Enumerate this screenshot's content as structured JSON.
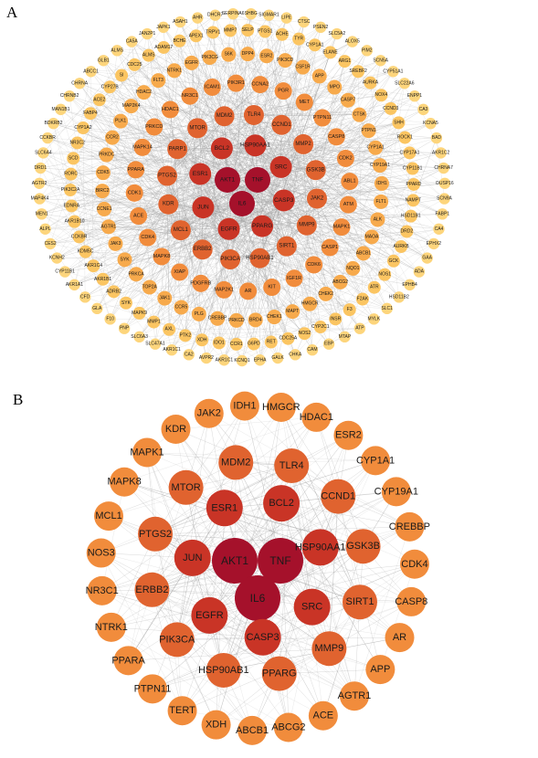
{
  "panels": {
    "a": {
      "letter": "A",
      "center": [
        "AKT1",
        "TNF",
        "IL6"
      ],
      "ring1": [
        "BCL2",
        "HSP90AA1",
        "SRC",
        "CASP3",
        "PPARG",
        "EGFR",
        "JUN",
        "ESR1"
      ],
      "ring2": [
        "MTOR",
        "MDM2",
        "TLR4",
        "CCND1",
        "MMP2",
        "GSK3B",
        "JAK2",
        "MMP9",
        "SIRT1",
        "HSP90AB1",
        "PIK3CA",
        "ERBB2",
        "MCL1",
        "KDR",
        "PTGS2",
        "PARP1"
      ],
      "ring3": [
        "HDAC1",
        "NR3C1",
        "ICAM1",
        "PIK3R1",
        "CCNA2",
        "PGR",
        "MET",
        "PTPN11",
        "CASP8",
        "CDK2",
        "ABL1",
        "ATM",
        "MAPK1",
        "CASP1",
        "CDK6",
        "IGF1R",
        "KIT",
        "AR",
        "MAP2K1",
        "PDGFRB",
        "XIAP",
        "MAPK8",
        "CDK4",
        "ACE",
        "CDK1",
        "PPARA",
        "MAPK14",
        "PRKCD"
      ],
      "ring4": [
        "HDAC2",
        "FLT3",
        "NTRK1",
        "EGFR",
        "PIK3CG",
        "S6K",
        "DPP4",
        "ESR2",
        "PIK3CD",
        "CSF1R",
        "APP",
        "MPO",
        "CASP7",
        "CTSK",
        "PTPN1",
        "CYP1A1",
        "CYP19A1",
        "IDH1",
        "FLT1",
        "ALK",
        "MAOA",
        "ABCB1",
        "NQO1",
        "ABCG2",
        "CHEK2",
        "HMGCR",
        "MAPT",
        "CHEK1",
        "BRD4",
        "PRKCD",
        "CREBBP",
        "PLG",
        "CCR5",
        "JAK1",
        "TOP2A",
        "PRKCA",
        "SYK",
        "JAK3",
        "AGTR1",
        "CCNE1",
        "BIRC2",
        "CDK5",
        "PRKDC",
        "CCR2",
        "PLK1",
        "MAP2K4"
      ],
      "ring5": [
        "CYP27B",
        "SI",
        "CDC25",
        "ALMS",
        "ADAM17",
        "BCHE",
        "APEX1",
        "TRPV1",
        "MMP7",
        "SELP",
        "PTGS1",
        "ACHE",
        "TYR",
        "CYP1A1",
        "ELANE",
        "ARG1",
        "SREBF2",
        "AURKA",
        "NOX4",
        "CCND3",
        "SHH",
        "ROCK1",
        "CYP17A1",
        "CYP11B1",
        "PPARD",
        "NAMPT",
        "HSD11B1",
        "DRD2",
        "AURKB",
        "GCK",
        "NOS1",
        "ATR",
        "F2AK",
        "F3",
        "INSR",
        "CYP2C1",
        "NOS2",
        "CDC25A",
        "RET",
        "G6PD",
        "CCR1",
        "IDO1",
        "XDH",
        "PTK2",
        "AXL",
        "MMP1",
        "MAPK9",
        "SYK",
        "ADRB2",
        "AKR1B1",
        "AKR1C4",
        "KDM5C",
        "CCKBR",
        "AKR1B10",
        "EDNRA",
        "PIK3C2A",
        "RORC",
        "SCD",
        "NR3C2",
        "CYP1A2",
        "FABP4",
        "ACE2"
      ],
      "ring6": [
        "CHRNA",
        "ABCC1",
        "GLB1",
        "ALMS",
        "CA5A",
        "JAN2P1",
        "JAPK1",
        "ASAH1",
        "AHR",
        "DHCR7",
        "SERPINA6",
        "SHBG",
        "SIGMAR1",
        "LIPE",
        "CTSC",
        "PSEN2",
        "SLC5A2",
        "ALOX5",
        "PIM2",
        "SCN5A",
        "CYP51A1",
        "SLC22A6",
        "ENPP1",
        "CA3",
        "KCNA5",
        "BAD",
        "AKR1C2",
        "CHRNA7",
        "DUSP16",
        "SCN9A",
        "FABP1",
        "CA4",
        "EPHX2",
        "GAA",
        "ADA",
        "EPHB4",
        "HSD11B2",
        "SLC1",
        "MYLK",
        "ATP",
        "MTAP",
        "EBP",
        "CAM",
        "CHKA",
        "GALK",
        "EPHA",
        "KCNQ1",
        "AKR1C1",
        "AVPR2",
        "CA2",
        "AKR1C1",
        "SLC47A1",
        "SLC6A3",
        "PNP",
        "F10",
        "GLA",
        "CFD",
        "AKR1A1",
        "CYP11B1",
        "KCNH2",
        "CES2",
        "ALPL",
        "MEN1",
        "MAP4K4",
        "AGTR2",
        "DRD1",
        "SLC6A4",
        "CCKBR",
        "BDKRB2",
        "MAN1B1",
        "CHRNB2"
      ]
    },
    "b": {
      "letter": "B",
      "center": [
        "AKT1",
        "TNF",
        "IL6"
      ],
      "ring1": [
        "BCL2",
        "HSP90AA1",
        "SRC",
        "CASP3",
        "EGFR",
        "JUN",
        "ESR1"
      ],
      "ring2": [
        "TLR4",
        "CCND1",
        "GSK3B",
        "SIRT1",
        "MMP9",
        "PPARG",
        "HSP90AB1",
        "PIK3CA",
        "ERBB2",
        "PTGS2",
        "MTOR",
        "MDM2"
      ],
      "ring3": [
        "HMGCR",
        "HDAC1",
        "ESR2",
        "CYP1A1",
        "CYP19A1",
        "CREBBP",
        "CDK4",
        "CASP8",
        "AR",
        "APP",
        "AGTR1",
        "ACE",
        "ABCG2",
        "ABCB1",
        "XDH",
        "TERT",
        "PTPN11",
        "PPARA",
        "NTRK1",
        "NR3C1",
        "NOS3",
        "MCL1",
        "MAPK8",
        "MAPK1",
        "KDR",
        "JAK2",
        "IDH1"
      ]
    }
  }
}
